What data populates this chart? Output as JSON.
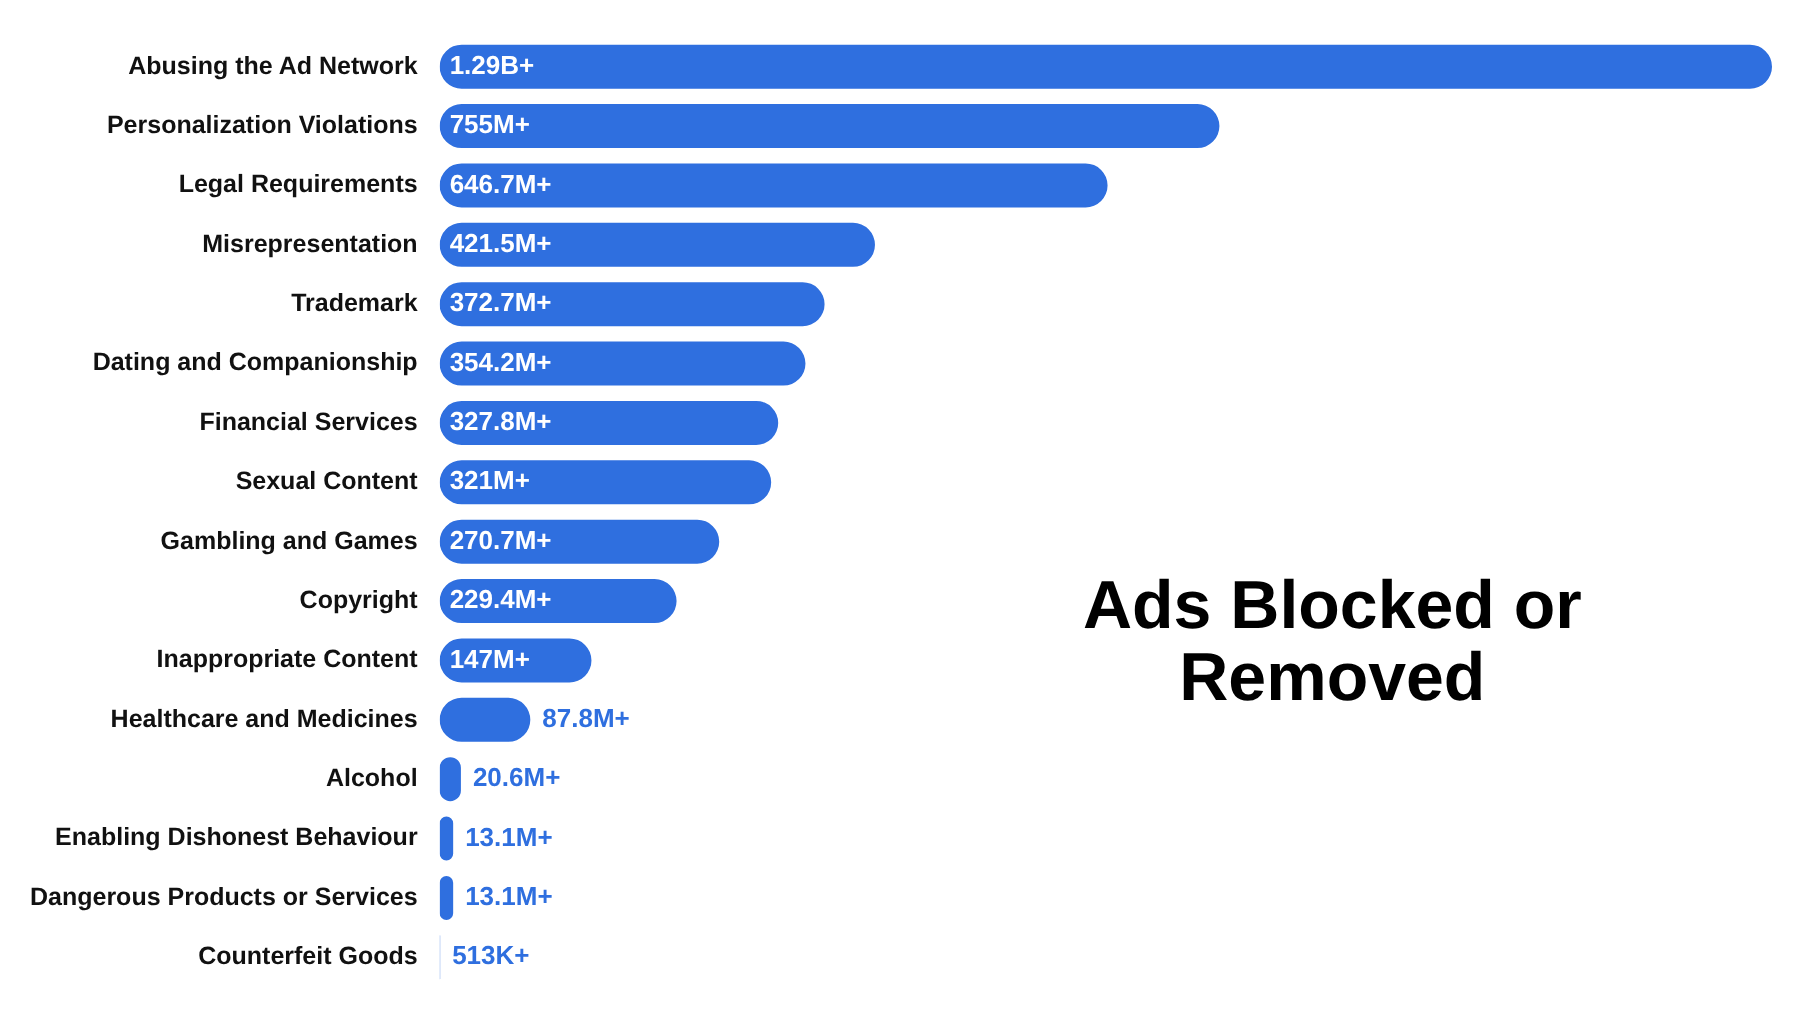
{
  "chart_data": {
    "type": "bar",
    "orientation": "horizontal",
    "title": "Ads Blocked or Removed",
    "categories": [
      "Abusing the Ad Network",
      "Personalization Violations",
      "Legal Requirements",
      "Misrepresentation",
      "Trademark",
      "Dating and Companionship",
      "Financial Services",
      "Sexual Content",
      "Gambling and Games",
      "Copyright",
      "Inappropriate Content",
      "Healthcare and Medicines",
      "Alcohol",
      "Enabling Dishonest Behaviour",
      "Dangerous Products or Services",
      "Counterfeit Goods"
    ],
    "values": [
      1290000000,
      755000000,
      646700000,
      421500000,
      372700000,
      354200000,
      327800000,
      321000000,
      270700000,
      229400000,
      147000000,
      87800000,
      20600000,
      13100000,
      13100000,
      513000
    ],
    "value_labels": [
      "1.29B+",
      "755M+",
      "646.7M+",
      "421.5M+",
      "372.7M+",
      "354.2M+",
      "327.8M+",
      "321M+",
      "270.7M+",
      "229.4M+",
      "147M+",
      "87.8M+",
      "20.6M+",
      "13.1M+",
      "13.1M+",
      "513K+"
    ],
    "color": "#2f6fdf",
    "legend": false
  }
}
